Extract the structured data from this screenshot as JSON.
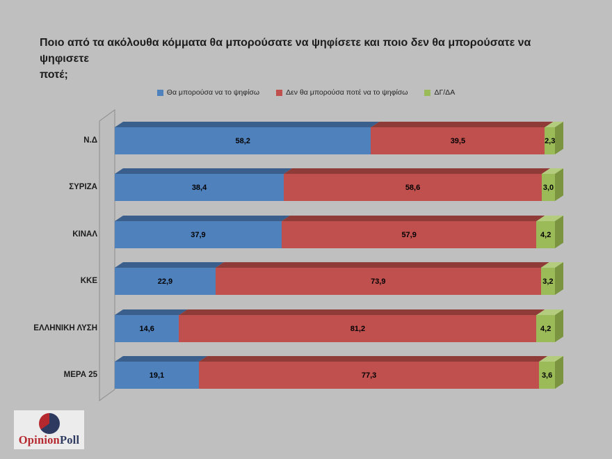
{
  "page": {
    "background": "#BFBFBF"
  },
  "title_lines": [
    "Ποιο από τα ακόλουθα κόμματα θα μπορούσατε να ψηφίσετε και ποιο δεν θα μπορούσατε να ψηφισετε",
    "ποτέ;"
  ],
  "legend": [
    {
      "label": "Θα μπορούσα να το ψηφίσω",
      "color": "#4F81BD"
    },
    {
      "label": "Δεν θα μπορούσα ποτέ να το ψηφίσω",
      "color": "#C0504D"
    },
    {
      "label": "ΔΓ/ΔΑ",
      "color": "#9BBB59"
    }
  ],
  "chart_data": {
    "type": "bar",
    "stacked": true,
    "orientation": "horizontal",
    "effect": "3d",
    "categories": [
      "Ν.Δ",
      "ΣΥΡΙΖΑ",
      "ΚΙΝΑΛ",
      "ΚΚΕ",
      "ΕΛΛΗΝΙΚΗ ΛΥΣΗ",
      "ΜΕΡΑ 25"
    ],
    "series": [
      {
        "name": "Θα μπορούσα να το ψηφίσω",
        "color": "#4F81BD",
        "color_top": "#3A5F8D",
        "color_side": "#2F4E76",
        "values": [
          58.2,
          38.4,
          37.9,
          22.9,
          14.6,
          19.1
        ]
      },
      {
        "name": "Δεν θα μπορούσα ποτέ να το ψηφίσω",
        "color": "#C0504D",
        "color_top": "#8F3B38",
        "color_side": "#7C3330",
        "values": [
          39.5,
          58.6,
          57.9,
          73.9,
          81.2,
          77.3
        ]
      },
      {
        "name": "ΔΓ/ΔΑ",
        "color": "#9BBB59",
        "color_top": "#B4CC7E",
        "color_side": "#7A9440",
        "values": [
          2.3,
          3.0,
          4.2,
          3.2,
          4.2,
          3.6
        ]
      }
    ],
    "xlim": [
      0,
      100
    ],
    "value_decimals": 1,
    "decimal_separator": ",",
    "grid": false,
    "legend_position": "top"
  },
  "logo": {
    "text_primary": "Opinion",
    "text_secondary": "Poll",
    "color_primary": "#B5282E",
    "color_secondary": "#2E3A5F",
    "pie_navy": "#2E3A5F",
    "pie_red": "#B5282E",
    "background": "#ECECEC"
  }
}
